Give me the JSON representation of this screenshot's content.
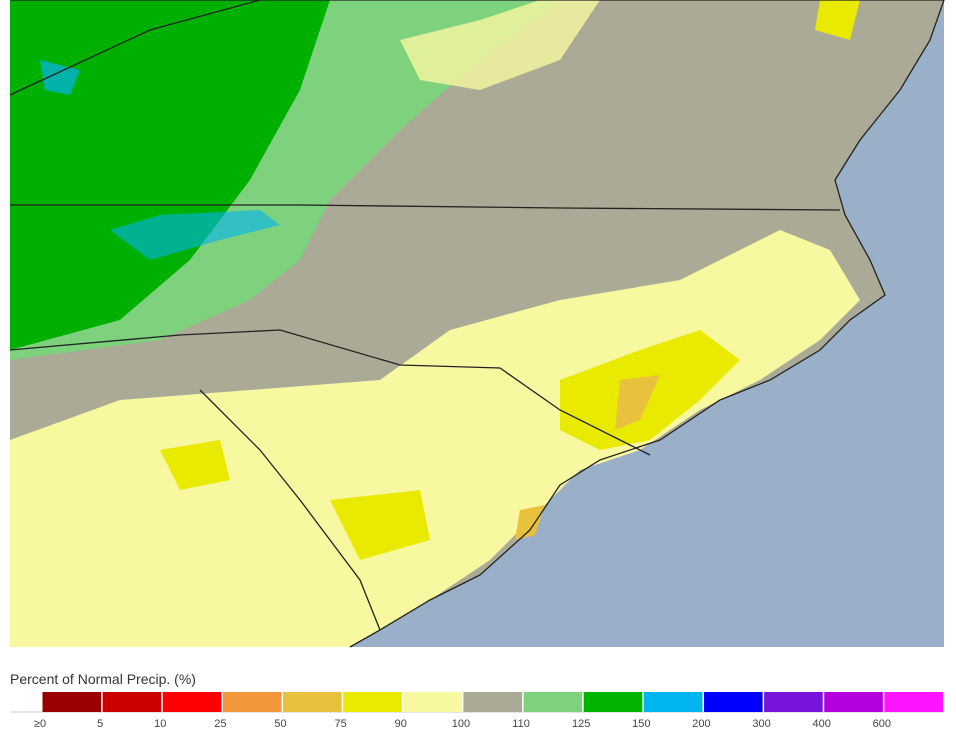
{
  "legend": {
    "title": "Percent of Normal Precip. (%)",
    "items": [
      {
        "label": "≥0",
        "color": "#9b0000"
      },
      {
        "label": "5",
        "color": "#cc0000"
      },
      {
        "label": "10",
        "color": "#ff0000"
      },
      {
        "label": "25",
        "color": "#f4963c"
      },
      {
        "label": "50",
        "color": "#e8c23c"
      },
      {
        "label": "75",
        "color": "#eaea00"
      },
      {
        "label": "90",
        "color": "#f8f8a0"
      },
      {
        "label": "100",
        "color": "#aaaa96"
      },
      {
        "label": "110",
        "color": "#7ed27e"
      },
      {
        "label": "125",
        "color": "#00b400"
      },
      {
        "label": "150",
        "color": "#00b4f0"
      },
      {
        "label": "200",
        "color": "#0000ff"
      },
      {
        "label": "300",
        "color": "#7814dc"
      },
      {
        "label": "400",
        "color": "#b400dc"
      },
      {
        "label": "600",
        "color": "#ff14ff"
      }
    ]
  }
}
